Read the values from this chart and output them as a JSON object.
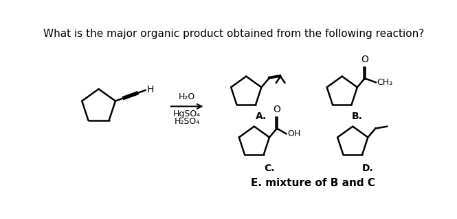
{
  "title": "What is the major organic product obtained from the following reaction?",
  "title_fontsize": 11,
  "background_color": "#ffffff",
  "text_color": "#000000",
  "reagents_line1": "H₂O",
  "reagents_line2": "HgSO₄",
  "reagents_line3": "H₂SO₄",
  "label_A": "A.",
  "label_B": "B.",
  "label_C": "C.",
  "label_D": "D.",
  "label_E": "E. mixture of B and C",
  "CH3_label": "CH₃",
  "OH_label": "OH",
  "O_label": "O"
}
